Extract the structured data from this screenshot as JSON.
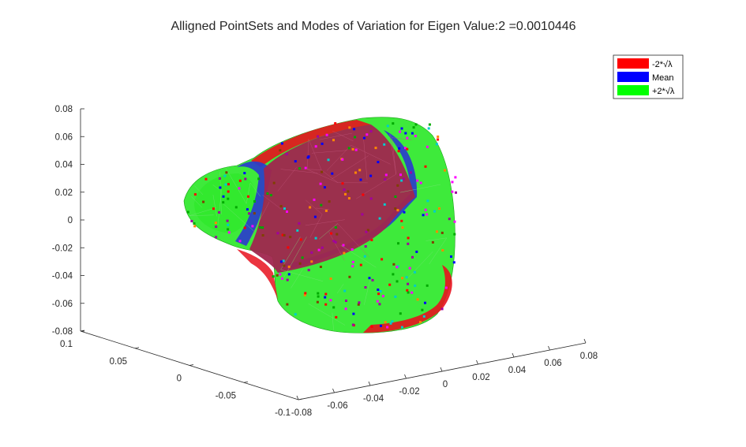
{
  "chart_data": {
    "type": "scatter",
    "subtype": "3d-surface-mesh",
    "title": "Alligned PointSets and Modes of Variation for Eigen Value:2 =0.0010446",
    "xlabel": "",
    "ylabel": "",
    "zlabel": "",
    "z_ticks": [
      "0.08",
      "0.06",
      "0.04",
      "0.02",
      "0",
      "-0.02",
      "-0.04",
      "-0.06",
      "-0.08"
    ],
    "y_ticks": [
      "0.1",
      "0.05",
      "0",
      "-0.05",
      "-0.1"
    ],
    "x_ticks": [
      "-0.08",
      "-0.06",
      "-0.04",
      "-0.02",
      "0",
      "0.02",
      "0.04",
      "0.06",
      "0.08"
    ],
    "xlim": [
      -0.08,
      0.08
    ],
    "ylim": [
      -0.1,
      0.1
    ],
    "zlim": [
      -0.08,
      0.08
    ],
    "grid": false,
    "legend_position": "top-right",
    "series": [
      {
        "name": "-2*√λ",
        "color": "#ff0000"
      },
      {
        "name": "Mean",
        "color": "#0000ff"
      },
      {
        "name": "+2*√λ",
        "color": "#00ff00"
      }
    ],
    "colors": {
      "axis": "#262626",
      "red_surface": "#e8121e",
      "blue_surface": "#2a3ccc",
      "green_surface": "#2ee82a",
      "overlap_surface": "#a0264e"
    }
  }
}
